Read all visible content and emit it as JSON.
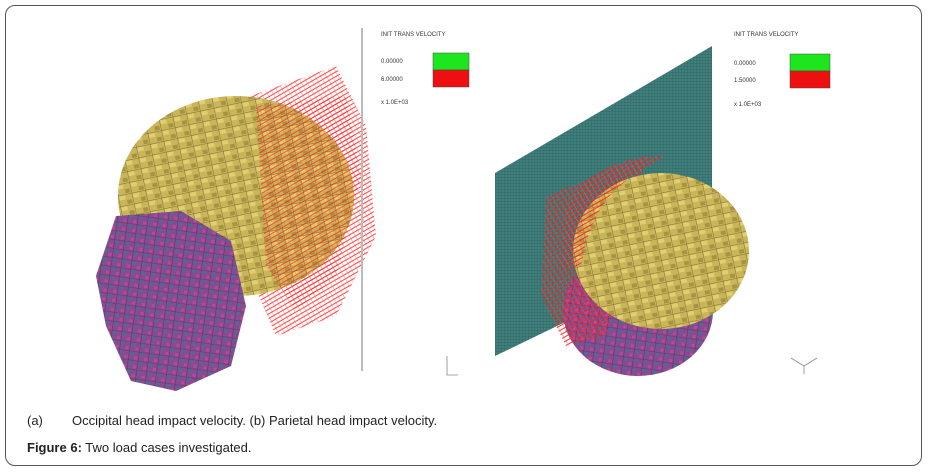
{
  "figure": {
    "panels": [
      {
        "legend": {
          "title": "INIT TRANS VELOCITY",
          "entries": [
            "0.00000",
            "6.00000"
          ],
          "scale": "x 1.0E+03"
        }
      },
      {
        "legend": {
          "title": "INIT TRANS VELOCITY",
          "entries": [
            "0.00000",
            "1.50000"
          ],
          "scale": "x 1.0E+03"
        }
      }
    ],
    "caption": {
      "sub_label": "(a)",
      "sub_text": "Occipital head impact velocity. (b) Parietal head impact velocity.",
      "figure_label": "Figure 6:",
      "figure_text": "Two load cases investigated."
    }
  }
}
